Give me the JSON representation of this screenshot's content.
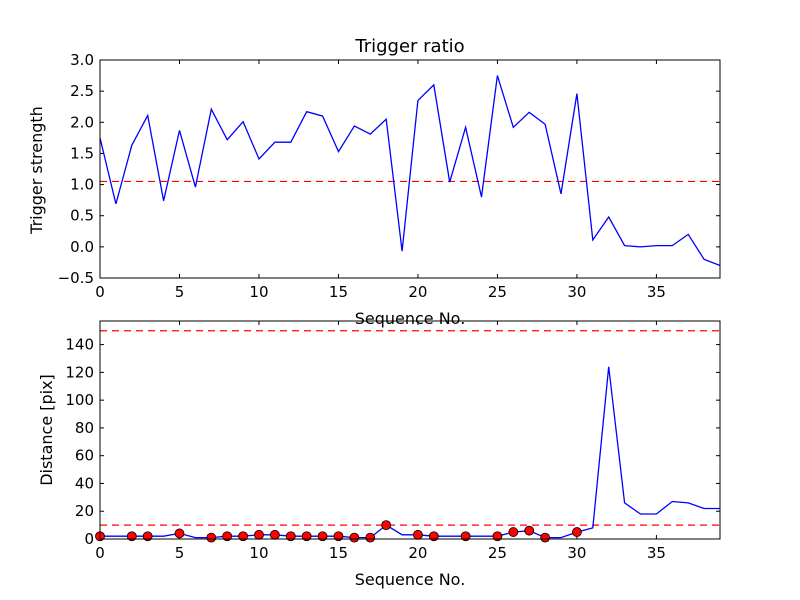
{
  "chart_data": [
    {
      "type": "line",
      "title": "Trigger ratio",
      "xlabel": "Sequence No.",
      "ylabel": "Trigger strength",
      "xlim": [
        0,
        39
      ],
      "ylim": [
        -0.5,
        3.0
      ],
      "xticks": [
        0,
        5,
        10,
        15,
        20,
        25,
        30,
        35
      ],
      "yticks": [
        -0.5,
        0.0,
        0.5,
        1.0,
        1.5,
        2.0,
        2.5,
        3.0
      ],
      "ytick_labels": [
        "−0.5",
        "0.0",
        "0.5",
        "1.0",
        "1.5",
        "2.0",
        "2.5",
        "3.0"
      ],
      "threshold_lines": [
        1.05
      ],
      "colors": {
        "series": "#0000ff",
        "threshold": "#ff0000"
      },
      "series": [
        {
          "x": [
            0,
            1,
            2,
            3,
            4,
            5,
            6,
            7,
            8,
            9,
            10,
            11,
            12,
            13,
            14,
            15,
            16,
            17,
            18,
            19,
            20,
            21,
            22,
            23,
            24,
            25,
            26,
            27,
            28,
            29,
            30,
            31,
            32,
            33,
            34,
            35,
            36,
            37,
            38,
            39
          ],
          "values": [
            1.75,
            0.69,
            1.63,
            2.11,
            0.74,
            1.87,
            0.96,
            2.21,
            1.72,
            2.01,
            1.41,
            1.68,
            1.68,
            2.17,
            2.1,
            1.53,
            1.94,
            1.81,
            2.05,
            -0.07,
            2.35,
            2.6,
            1.04,
            1.92,
            0.8,
            2.75,
            1.92,
            2.16,
            1.97,
            0.85,
            2.46,
            0.11,
            0.48,
            0.02,
            0.0,
            0.02,
            0.02,
            0.2,
            -0.2,
            -0.3
          ]
        }
      ]
    },
    {
      "type": "line",
      "title": "",
      "xlabel": "Sequence No.",
      "ylabel": "Distance [pix]",
      "xlim": [
        0,
        39
      ],
      "ylim": [
        0,
        157
      ],
      "xticks": [
        0,
        5,
        10,
        15,
        20,
        25,
        30,
        35
      ],
      "yticks": [
        0,
        20,
        40,
        60,
        80,
        100,
        120,
        140
      ],
      "threshold_lines": [
        150,
        10
      ],
      "colors": {
        "series": "#0000ff",
        "threshold": "#ff0000",
        "marker": "#ff0000"
      },
      "series": [
        {
          "x": [
            0,
            1,
            2,
            3,
            4,
            5,
            6,
            7,
            8,
            9,
            10,
            11,
            12,
            13,
            14,
            15,
            16,
            17,
            18,
            19,
            20,
            21,
            22,
            23,
            24,
            25,
            26,
            27,
            28,
            29,
            30,
            31,
            32,
            33,
            34,
            35,
            36,
            37,
            38,
            39
          ],
          "values": [
            2,
            2,
            2,
            2,
            2,
            4,
            1,
            1,
            2,
            2,
            3,
            3,
            2,
            2,
            2,
            2,
            1,
            1,
            10,
            3,
            3,
            2,
            2,
            2,
            2,
            2,
            5,
            6,
            1,
            1,
            5,
            8,
            124,
            26,
            18,
            18,
            27,
            26,
            22,
            22
          ]
        }
      ],
      "markers": {
        "x": [
          0,
          2,
          3,
          5,
          7,
          8,
          9,
          10,
          11,
          12,
          13,
          14,
          15,
          16,
          17,
          18,
          20,
          21,
          23,
          25,
          26,
          27,
          28,
          30
        ],
        "y": [
          2,
          2,
          2,
          4,
          1,
          2,
          2,
          3,
          3,
          2,
          2,
          2,
          2,
          1,
          1,
          10,
          3,
          2,
          2,
          2,
          5,
          6,
          1,
          5
        ]
      }
    }
  ]
}
